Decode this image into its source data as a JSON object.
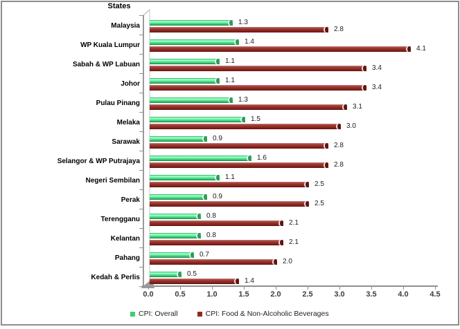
{
  "title": "States",
  "chart_data": {
    "type": "bar",
    "orientation": "horizontal",
    "title": "States",
    "xlabel": "",
    "ylabel": "States",
    "categories": [
      "Malaysia",
      "WP Kuala Lumpur",
      "Sabah & WP Labuan",
      "Johor",
      "Pulau Pinang",
      "Melaka",
      "Sarawak",
      "Selangor & WP Putrajaya",
      "Negeri Sembilan",
      "Perak",
      "Terengganu",
      "Kelantan",
      "Pahang",
      "Kedah & Perlis"
    ],
    "series": [
      {
        "name": "CPI: Overall",
        "color": "#3ecc77",
        "values": [
          1.3,
          1.4,
          1.1,
          1.1,
          1.3,
          1.5,
          0.9,
          1.6,
          1.1,
          0.9,
          0.8,
          0.8,
          0.7,
          0.5
        ]
      },
      {
        "name": "CPI: Food & Non-Alcoholic Beverages",
        "color": "#8e2a24",
        "values": [
          2.8,
          4.1,
          3.4,
          3.4,
          3.1,
          3.0,
          2.8,
          2.8,
          2.5,
          2.5,
          2.1,
          2.1,
          2.0,
          1.4
        ]
      }
    ],
    "xlim": [
      0,
      4.5
    ],
    "xticks": [
      0.0,
      0.5,
      1.0,
      1.5,
      2.0,
      2.5,
      3.0,
      3.5,
      4.0,
      4.5
    ],
    "grid": false,
    "data_labels": true,
    "legend_position": "bottom",
    "legend": [
      {
        "label": "CPI: Overall",
        "marker": "square",
        "color": "#3ecc77"
      },
      {
        "label": "CPI: Food & Non-Alcoholic Beverages",
        "marker": "square",
        "color": "#8e2a24"
      }
    ]
  }
}
